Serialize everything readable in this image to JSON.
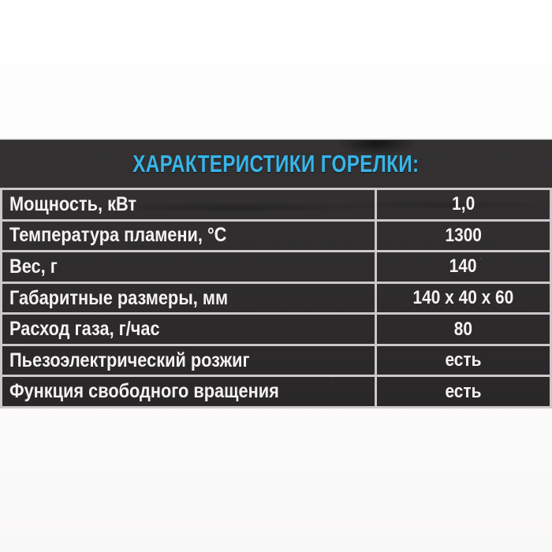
{
  "card": {
    "title": "ХАРАКТЕРИСТИКИ ГОРЕЛКИ:",
    "rows": [
      {
        "label": "Мощность, кВт",
        "value": "1,0"
      },
      {
        "label": "Температура пламени, °С",
        "value": "1300"
      },
      {
        "label": "Вес, г",
        "value": "140"
      },
      {
        "label": "Габаритные размеры, мм",
        "value": "140 x 40 x 60"
      },
      {
        "label": "Расход газа, г/час",
        "value": "80"
      },
      {
        "label": "Пьезоэлектрический розжиг",
        "value": "есть"
      },
      {
        "label": "Функция свободного вращения",
        "value": "есть"
      }
    ],
    "colors": {
      "title": "#38b5e9",
      "card_background": "#2b292a",
      "grid_line": "#cac8ca",
      "row_text": "#f4f3f1",
      "page_background": "#fdfdfd"
    }
  }
}
